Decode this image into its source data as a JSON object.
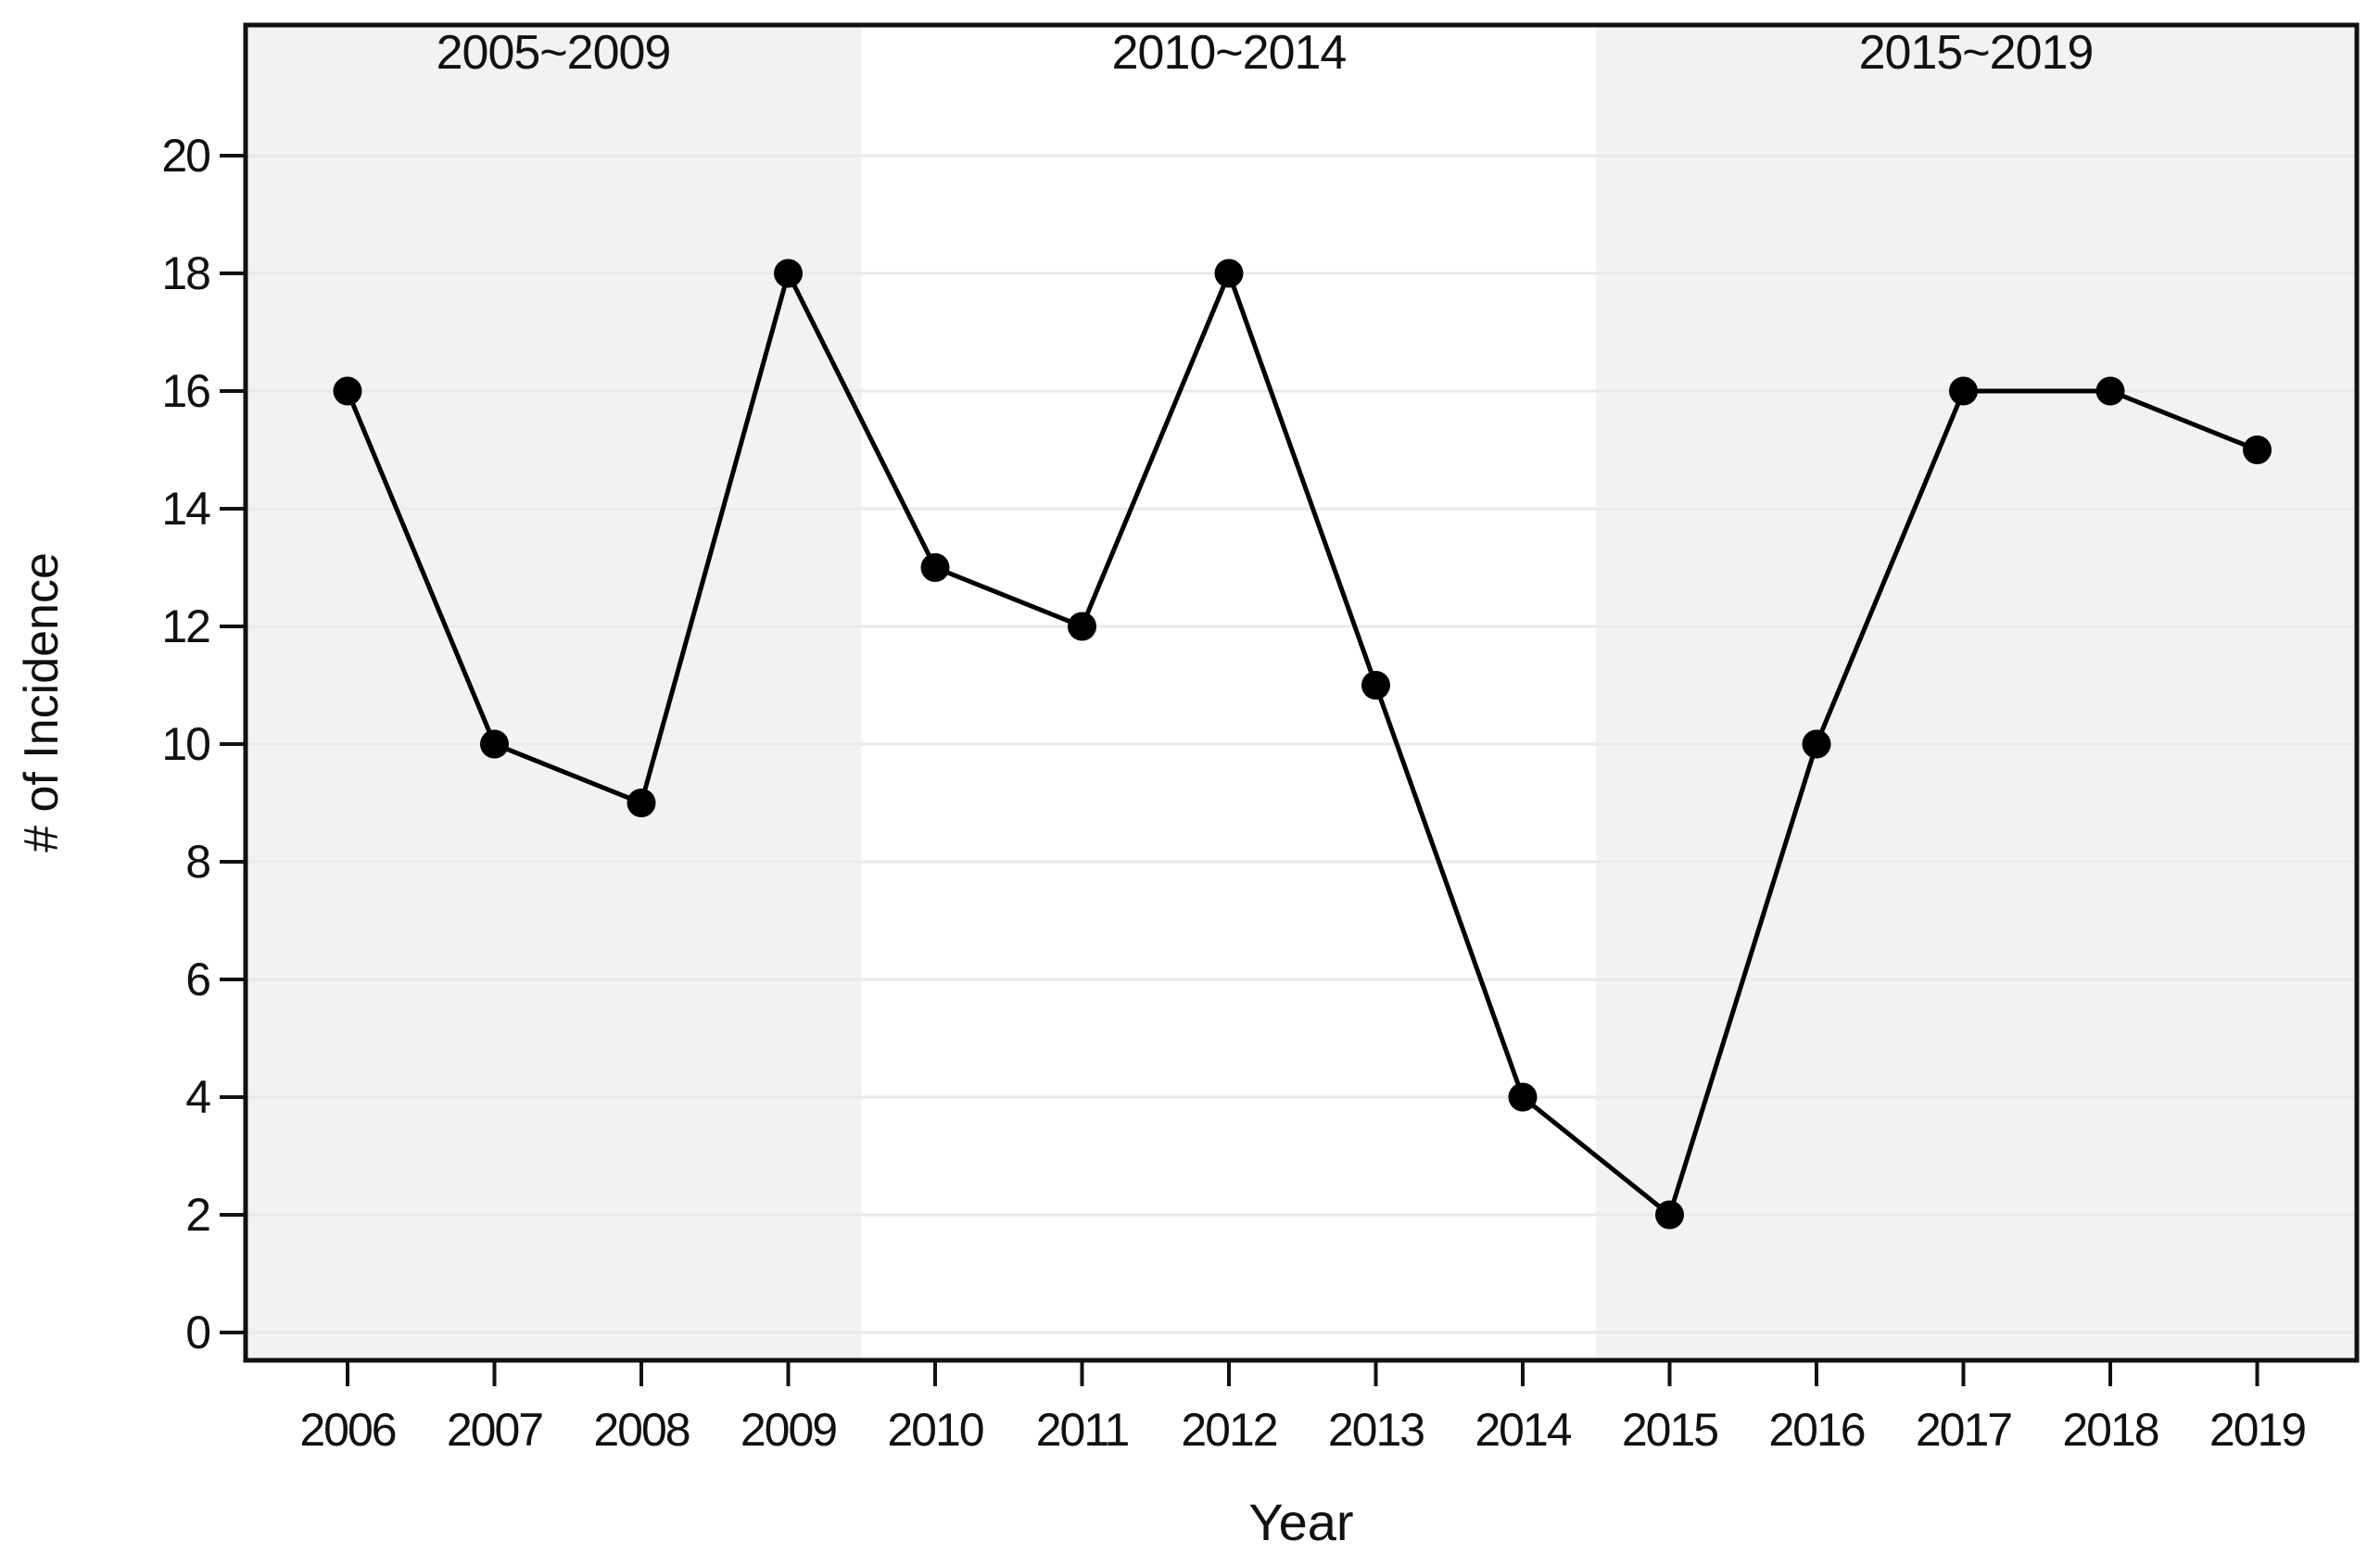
{
  "chart_data": {
    "type": "line",
    "title": "",
    "xlabel": "Year",
    "ylabel": "# of Incidence",
    "x": [
      2006,
      2007,
      2008,
      2009,
      2010,
      2011,
      2012,
      2013,
      2014,
      2015,
      2016,
      2017,
      2018,
      2019
    ],
    "x_tick_labels": [
      "2006",
      "2007",
      "2008",
      "2009",
      "2010",
      "2011",
      "2012",
      "2013",
      "2014",
      "2015",
      "2016",
      "2017",
      "2018",
      "2019"
    ],
    "y_ticks": [
      0,
      2,
      4,
      6,
      8,
      10,
      12,
      14,
      16,
      18,
      20
    ],
    "y_tick_labels": [
      "0",
      "2",
      "4",
      "6",
      "8",
      "10",
      "12",
      "14",
      "16",
      "18",
      "20"
    ],
    "ylim": [
      0,
      22.2
    ],
    "grid": "horizontal",
    "legend": "none",
    "series": [
      {
        "name": "# of Incidence",
        "marker": "circle",
        "values": [
          16,
          10,
          9,
          18,
          13,
          12,
          18,
          11,
          4,
          2,
          10,
          16,
          16,
          15
        ]
      }
    ],
    "bands": [
      {
        "label": "2005~2009",
        "x_start": 2005,
        "x_end": 2009.5,
        "shaded": true
      },
      {
        "label": "2010~2014",
        "x_start": 2009.5,
        "x_end": 2014.5,
        "shaded": false
      },
      {
        "label": "2015~2019",
        "x_start": 2014.5,
        "x_end": 2020,
        "shaded": true
      }
    ],
    "colors": {
      "band_shaded": "#f2f2f2",
      "band_plain": "#ffffff",
      "gridline": "#e9e9e9",
      "axis": "#111111",
      "text": "#111111",
      "series_line": "#000000",
      "series_marker": "#000000"
    }
  }
}
